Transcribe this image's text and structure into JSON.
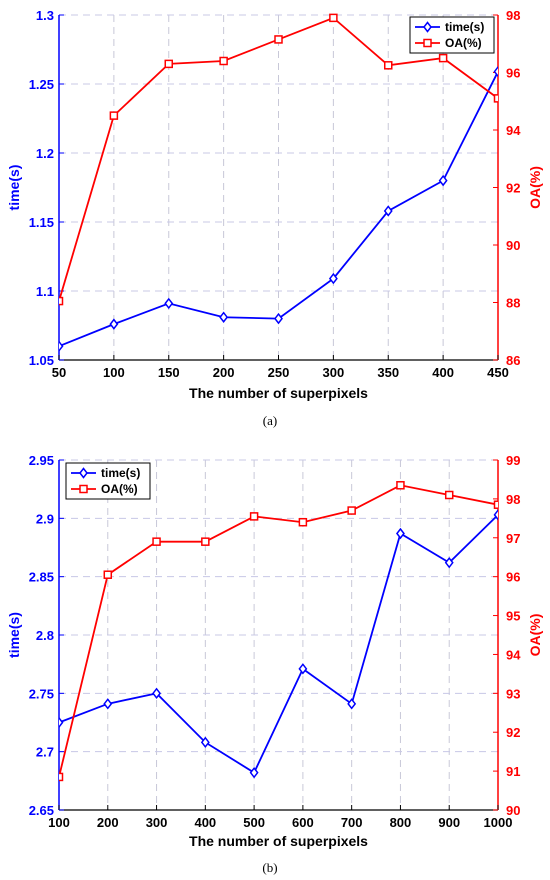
{
  "chart_data": [
    {
      "type": "line",
      "caption": "(a)",
      "xlabel": "The number of superpixels",
      "ylabel_left": "time(s)",
      "ylabel_right": "OA(%)",
      "x": [
        50,
        100,
        150,
        200,
        250,
        300,
        350,
        400,
        450
      ],
      "xlim": [
        50,
        450
      ],
      "ylim_left": [
        1.05,
        1.3
      ],
      "yticks_left": [
        1.05,
        1.1,
        1.15,
        1.2,
        1.25,
        1.3
      ],
      "ylim_right": [
        86,
        98
      ],
      "yticks_right": [
        86,
        88,
        90,
        92,
        94,
        96,
        98
      ],
      "grid": true,
      "legend_position": "top-right",
      "colors": {
        "left_axis": "#0000ff",
        "right_axis": "#ff0000"
      },
      "series": [
        {
          "name": "time(s)",
          "axis": "left",
          "marker": "diamond",
          "color": "#0000ff",
          "values": [
            1.06,
            1.076,
            1.091,
            1.081,
            1.08,
            1.109,
            1.158,
            1.18,
            1.259
          ]
        },
        {
          "name": "OA(%)",
          "axis": "right",
          "marker": "square",
          "color": "#ff0000",
          "values": [
            88.05,
            94.5,
            96.3,
            96.4,
            97.15,
            97.9,
            96.25,
            96.5,
            95.1
          ]
        }
      ]
    },
    {
      "type": "line",
      "caption": "(b)",
      "xlabel": "The number of superpixels",
      "ylabel_left": "time(s)",
      "ylabel_right": "OA(%)",
      "x": [
        100,
        200,
        300,
        400,
        500,
        600,
        700,
        800,
        900,
        1000
      ],
      "xlim": [
        100,
        1000
      ],
      "ylim_left": [
        2.65,
        2.95
      ],
      "yticks_left": [
        2.65,
        2.7,
        2.75,
        2.8,
        2.85,
        2.9,
        2.95
      ],
      "ylim_right": [
        90,
        99
      ],
      "yticks_right": [
        90,
        91,
        92,
        93,
        94,
        95,
        96,
        97,
        98,
        99
      ],
      "grid": true,
      "legend_position": "top-left",
      "colors": {
        "left_axis": "#0000ff",
        "right_axis": "#ff0000"
      },
      "series": [
        {
          "name": "time(s)",
          "axis": "left",
          "marker": "diamond",
          "color": "#0000ff",
          "values": [
            2.725,
            2.741,
            2.75,
            2.708,
            2.682,
            2.771,
            2.741,
            2.887,
            2.862,
            2.903
          ]
        },
        {
          "name": "OA(%)",
          "axis": "right",
          "marker": "square",
          "color": "#ff0000",
          "values": [
            90.85,
            96.05,
            96.9,
            96.9,
            97.55,
            97.4,
            97.7,
            98.35,
            98.1,
            97.85
          ]
        }
      ]
    }
  ]
}
